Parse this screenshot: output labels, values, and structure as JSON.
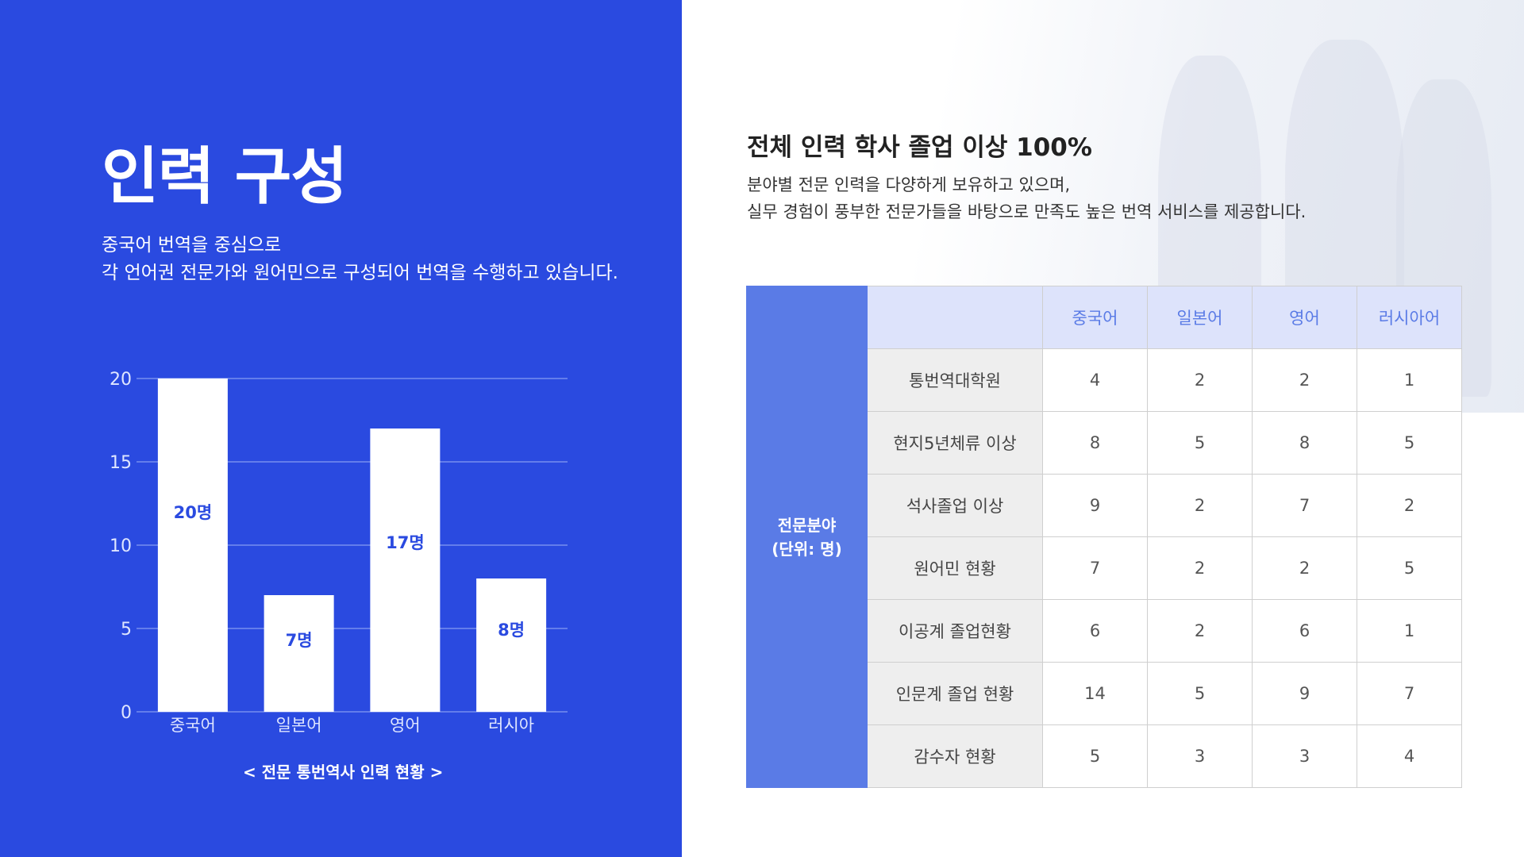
{
  "left_panel": {
    "title": "인력 구성",
    "subtitle_line1": "중국어 번역을 중심으로",
    "subtitle_line2": "각 언어권 전문가와 원어민으로 구성되어 번역을 수행하고 있습니다.",
    "caption": "< 전문 통번역사 인력 현황 >",
    "bg_color": "#2a4ae0"
  },
  "chart_data": {
    "type": "bar",
    "categories": [
      "중국어",
      "일본어",
      "영어",
      "러시아"
    ],
    "values": [
      20,
      7,
      17,
      8
    ],
    "data_labels": [
      "20명",
      "7명",
      "17명",
      "8명"
    ],
    "ylim": [
      0,
      20
    ],
    "yticks": [
      0,
      5,
      10,
      15,
      20
    ],
    "grid": true,
    "bar_color": "#ffffff",
    "label_color": "#2a4ae0"
  },
  "right_panel": {
    "headline": "전체 인력 학사 졸업 이상 100%",
    "desc_line1": "분야별 전문 인력을 다양하게 보유하고 있으며,",
    "desc_line2": "실무 경험이 풍부한 전문가들을 바탕으로 만족도 높은 번역 서비스를 제공합니다."
  },
  "table": {
    "side_header_line1": "전문분야",
    "side_header_line2": "(단위: 명)",
    "columns": [
      "중국어",
      "일본어",
      "영어",
      "러시아어"
    ],
    "rows": [
      {
        "label": "통번역대학원",
        "values": [
          "4",
          "2",
          "2",
          "1"
        ]
      },
      {
        "label": "현지5년체류 이상",
        "values": [
          "8",
          "5",
          "8",
          "5"
        ]
      },
      {
        "label": "석사졸업 이상",
        "values": [
          "9",
          "2",
          "7",
          "2"
        ]
      },
      {
        "label": "원어민 현황",
        "values": [
          "7",
          "2",
          "2",
          "5"
        ]
      },
      {
        "label": "이공계 졸업현황",
        "values": [
          "6",
          "2",
          "6",
          "1"
        ]
      },
      {
        "label": "인문계 졸업 현황",
        "values": [
          "14",
          "5",
          "9",
          "7"
        ]
      },
      {
        "label": "감수자 현황",
        "values": [
          "5",
          "3",
          "3",
          "4"
        ]
      }
    ],
    "header_color": "#5a7be6",
    "column_header_bg": "#dde3fb"
  }
}
